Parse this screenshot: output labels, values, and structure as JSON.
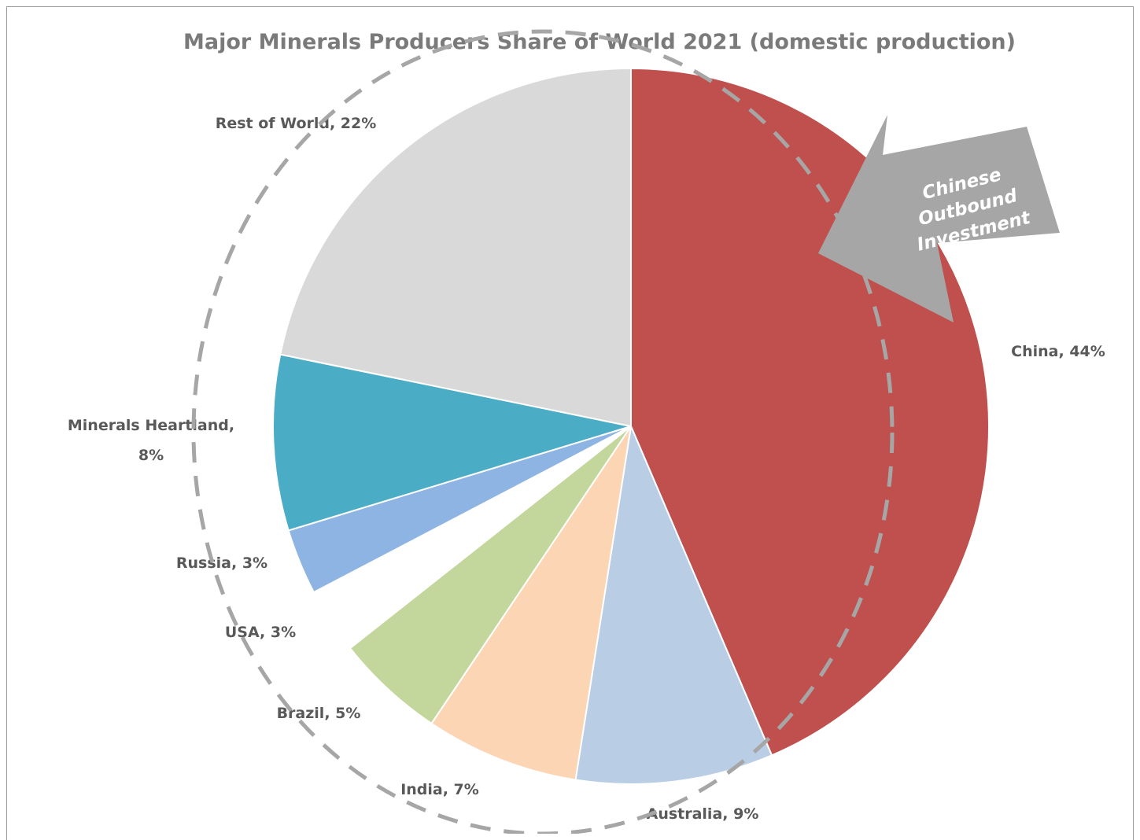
{
  "chart_data": {
    "type": "pie",
    "title": "Major Minerals Producers Share of World 2021 (domestic production)",
    "slices": [
      {
        "label": "China",
        "value": 44,
        "data_label": "China, 44%",
        "color": "#c0504d"
      },
      {
        "label": "Australia",
        "value": 9,
        "data_label": "Australia, 9%",
        "color": "#b9cde5"
      },
      {
        "label": "India",
        "value": 7,
        "data_label": "India, 7%",
        "color": "#fcd5b5"
      },
      {
        "label": "Brazil",
        "value": 5,
        "data_label": "Brazil, 5%",
        "color": "#c3d69b"
      },
      {
        "label": "USA",
        "value": 3,
        "data_label": "USA, 3%",
        "color": "#ffffff"
      },
      {
        "label": "Russia",
        "value": 3,
        "data_label": "Russia, 3%",
        "color": "#8eb4e3"
      },
      {
        "label": "Minerals Heartland",
        "value": 8,
        "data_label_lines": [
          "Minerals Heartland,",
          "8%"
        ],
        "color": "#4bacc6"
      },
      {
        "label": "Rest of World",
        "value": 22,
        "data_label": "Rest of World, 22%",
        "color": "#d9d9d9"
      }
    ],
    "annotation": {
      "lines": [
        "Chinese",
        "Outbound",
        "Investment"
      ],
      "arrow_color": "#a6a6a6",
      "dashed_outline_color": "#a6a6a6"
    }
  }
}
